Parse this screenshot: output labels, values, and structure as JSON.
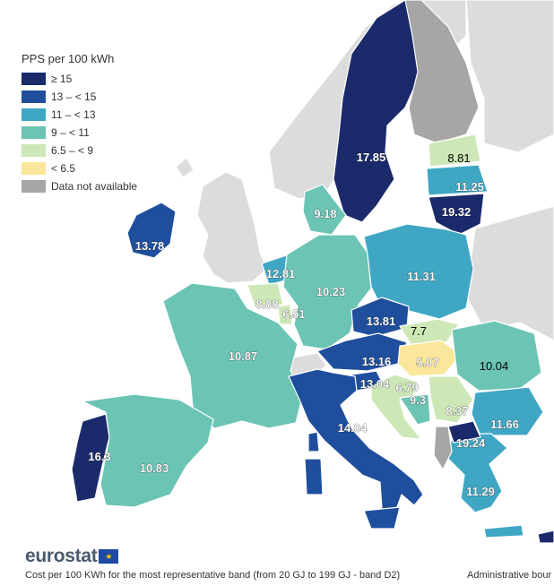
{
  "legend": {
    "title": "PPS per 100 kWh",
    "classes": [
      {
        "label": "≥ 15",
        "color": "#1b2a6b"
      },
      {
        "label": "13 – < 15",
        "color": "#1f4f9c"
      },
      {
        "label": "11 – < 13",
        "color": "#3fa7c4"
      },
      {
        "label": "9 – < 11",
        "color": "#6cc4b4"
      },
      {
        "label": "6.5 – < 9",
        "color": "#cde8b6"
      },
      {
        "label": "< 6.5",
        "color": "#fbe79c"
      },
      {
        "label": "Data not available",
        "color": "#a6a6a6"
      }
    ]
  },
  "chart_data": {
    "type": "choropleth",
    "title": "",
    "unit": "PPS per 100 kWh",
    "values": [
      {
        "label": "17.85",
        "value": 17.85,
        "class": 0
      },
      {
        "label": "8.81",
        "value": 8.81,
        "class": 4
      },
      {
        "label": "11.25",
        "value": 11.25,
        "class": 2
      },
      {
        "label": "19.32",
        "value": 19.32,
        "class": 0
      },
      {
        "label": "9.18",
        "value": 9.18,
        "class": 3
      },
      {
        "label": "13.78",
        "value": 13.78,
        "class": 1
      },
      {
        "label": "12.81",
        "value": 12.81,
        "class": 2
      },
      {
        "label": "8.88",
        "value": 8.88,
        "class": 4
      },
      {
        "label": "6.51",
        "value": 6.51,
        "class": 4
      },
      {
        "label": "10.23",
        "value": 10.23,
        "class": 3
      },
      {
        "label": "11.31",
        "value": 11.31,
        "class": 2
      },
      {
        "label": "13.81",
        "value": 13.81,
        "class": 1
      },
      {
        "label": "7.7",
        "value": 7.7,
        "class": 4
      },
      {
        "label": "10.87",
        "value": 10.87,
        "class": 3
      },
      {
        "label": "13.16",
        "value": 13.16,
        "class": 1
      },
      {
        "label": "5.07",
        "value": 5.07,
        "class": 5
      },
      {
        "label": "10.04",
        "value": 10.04,
        "class": 3
      },
      {
        "label": "13.04",
        "value": 13.04,
        "class": 1
      },
      {
        "label": "6.79",
        "value": 6.79,
        "class": 4
      },
      {
        "label": "9.3",
        "value": 9.3,
        "class": 3
      },
      {
        "label": "8.37",
        "value": 8.37,
        "class": 4
      },
      {
        "label": "11.66",
        "value": 11.66,
        "class": 2
      },
      {
        "label": "14.04",
        "value": 14.04,
        "class": 1
      },
      {
        "label": "19.24",
        "value": 19.24,
        "class": 0
      },
      {
        "label": "16.3",
        "value": 16.3,
        "class": 0
      },
      {
        "label": "10.83",
        "value": 10.83,
        "class": 3
      },
      {
        "label": "11.29",
        "value": 11.29,
        "class": 2
      }
    ]
  },
  "footer": {
    "logo_text": "eurostat",
    "note": "Cost per 100 KWh for the most representative band (from 20 GJ to 199 GJ - band D2)",
    "admin": "Administrative bour"
  }
}
